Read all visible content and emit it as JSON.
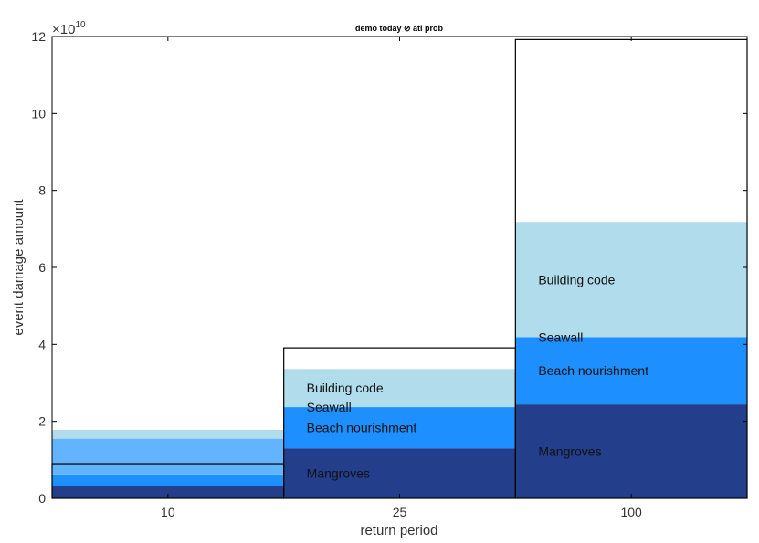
{
  "chart_data": {
    "type": "bar",
    "stacked": true,
    "title": "demo today ⊘ atl prob",
    "xlabel": "return period",
    "ylabel": "event damage amount",
    "y_exponent_base": "×10",
    "y_exponent_power": "10",
    "ylim": [
      0,
      12
    ],
    "yticks": [
      0,
      2,
      4,
      6,
      8,
      10,
      12
    ],
    "categories": [
      "10",
      "25",
      "100"
    ],
    "series": [
      {
        "name": "Mangroves",
        "color": "#233f8c",
        "values": [
          0.33,
          1.3,
          2.44
        ]
      },
      {
        "name": "Beach nourishment",
        "color": "#1e8fff",
        "values": [
          0.29,
          1.07,
          1.75
        ]
      },
      {
        "name": "Seawall",
        "color": "#63b4ff",
        "values": [
          0.93,
          0.0,
          0.0
        ]
      },
      {
        "name": "Building code",
        "color": "#b0dcec",
        "values": [
          0.23,
          0.99,
          2.99
        ]
      }
    ],
    "total_damage": [
      0.9,
      3.91,
      11.92
    ],
    "segment_labels_shown_for": [
      "25",
      "100"
    ],
    "units_note": "values in units of 1e10"
  }
}
